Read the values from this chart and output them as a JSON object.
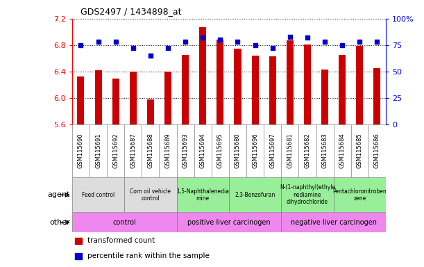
{
  "title": "GDS2497 / 1434898_at",
  "samples": [
    "GSM115690",
    "GSM115691",
    "GSM115692",
    "GSM115687",
    "GSM115688",
    "GSM115689",
    "GSM115693",
    "GSM115694",
    "GSM115695",
    "GSM115680",
    "GSM115696",
    "GSM115697",
    "GSM115681",
    "GSM115682",
    "GSM115683",
    "GSM115684",
    "GSM115685",
    "GSM115686"
  ],
  "transformed_counts": [
    6.32,
    6.42,
    6.29,
    6.4,
    5.97,
    6.4,
    6.65,
    7.07,
    6.88,
    6.75,
    6.64,
    6.63,
    6.87,
    6.81,
    6.43,
    6.65,
    6.79,
    6.45
  ],
  "percentile_ranks": [
    75,
    78,
    78,
    72,
    65,
    72,
    78,
    82,
    80,
    78,
    75,
    72,
    83,
    82,
    78,
    75,
    78,
    78
  ],
  "ylim": [
    5.6,
    7.2
  ],
  "y_ticks": [
    5.6,
    6.0,
    6.4,
    6.8,
    7.2
  ],
  "y2_ticks": [
    0,
    25,
    50,
    75,
    100
  ],
  "y2_labels": [
    "0",
    "25",
    "50",
    "75",
    "100%"
  ],
  "bar_color": "#cc0000",
  "dot_color": "#0000cc",
  "agent_groups": [
    {
      "label": "Feed control",
      "start": 0,
      "end": 3,
      "color": "#dddddd"
    },
    {
      "label": "Corn oil vehicle\ncontrol",
      "start": 3,
      "end": 6,
      "color": "#dddddd"
    },
    {
      "label": "1,5-Naphthalenedia\nmine",
      "start": 6,
      "end": 9,
      "color": "#99ee99"
    },
    {
      "label": "2,3-Benzofuran",
      "start": 9,
      "end": 12,
      "color": "#99ee99"
    },
    {
      "label": "N-(1-naphthyl)ethyle\nnediamine\ndihydrochloride",
      "start": 12,
      "end": 15,
      "color": "#99ee99"
    },
    {
      "label": "Pentachloronitroben\nzene",
      "start": 15,
      "end": 18,
      "color": "#99ee99"
    }
  ],
  "other_groups": [
    {
      "label": "control",
      "start": 0,
      "end": 6,
      "color": "#ee88ee"
    },
    {
      "label": "positive liver carcinogen",
      "start": 6,
      "end": 12,
      "color": "#ee88ee"
    },
    {
      "label": "negative liver carcinogen",
      "start": 12,
      "end": 18,
      "color": "#ee88ee"
    }
  ],
  "legend_items": [
    {
      "color": "#cc0000",
      "label": "transformed count"
    },
    {
      "color": "#0000cc",
      "label": "percentile rank within the sample"
    }
  ],
  "sample_bg_color": "#cccccc"
}
